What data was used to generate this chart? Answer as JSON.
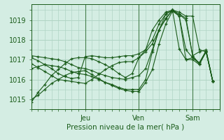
{
  "title": "",
  "xlabel": "Pression niveau de la mer( hPa )",
  "ylabel": "",
  "background_color": "#d4ede3",
  "grid_color": "#afd4c4",
  "line_color": "#1a5c1a",
  "ylim": [
    1014.5,
    1019.8
  ],
  "xlim": [
    0,
    84
  ],
  "xtick_positions": [
    24,
    48,
    72
  ],
  "xtick_labels": [
    "Jeu",
    "Ven",
    "Sam"
  ],
  "ytick_positions": [
    1015,
    1016,
    1017,
    1018,
    1019
  ],
  "ytick_labels": [
    "1015",
    "1016",
    "1017",
    "1018",
    "1019"
  ],
  "series": [
    [
      0,
      1014.85,
      3,
      1015.35,
      6,
      1015.75,
      9,
      1016.2,
      12,
      1016.5,
      15,
      1016.8,
      18,
      1017.05,
      21,
      1017.1,
      24,
      1017.1,
      27,
      1017.05,
      30,
      1016.9,
      33,
      1016.75,
      36,
      1016.55,
      39,
      1016.3,
      42,
      1016.1,
      45,
      1016.3,
      48,
      1017.1,
      51,
      1017.5,
      54,
      1018.0,
      57,
      1018.8,
      60,
      1019.3,
      63,
      1019.5,
      66,
      1019.4,
      69,
      1019.2,
      72,
      1019.2,
      75,
      1017.5,
      78,
      1017.4,
      81,
      1015.9
    ],
    [
      0,
      1017.1,
      3,
      1016.95,
      6,
      1016.75,
      9,
      1016.55,
      12,
      1016.3,
      15,
      1016.15,
      18,
      1016.05,
      21,
      1016.1,
      24,
      1017.15,
      27,
      1017.2,
      30,
      1017.15,
      33,
      1017.1,
      36,
      1017.1,
      39,
      1017.15,
      42,
      1017.2,
      45,
      1017.2,
      48,
      1017.3,
      51,
      1017.5,
      54,
      1018.5,
      57,
      1019.0,
      60,
      1019.4,
      63,
      1019.5,
      66,
      1019.3,
      69,
      1019.0,
      72,
      1017.2,
      75,
      1017.4,
      78,
      1017.5,
      81,
      1015.9
    ],
    [
      0,
      1016.8,
      3,
      1016.6,
      6,
      1016.4,
      9,
      1016.2,
      12,
      1016.0,
      15,
      1015.95,
      18,
      1015.9,
      21,
      1015.85,
      24,
      1015.8,
      27,
      1016.0,
      30,
      1016.25,
      33,
      1016.5,
      36,
      1016.7,
      39,
      1016.85,
      42,
      1016.9,
      45,
      1016.9,
      48,
      1017.1,
      51,
      1017.4,
      54,
      1017.8,
      57,
      1018.5,
      60,
      1019.1,
      63,
      1019.5,
      66,
      1019.3,
      69,
      1019.1,
      72,
      1017.2,
      75,
      1016.8,
      78,
      1017.45,
      81,
      1015.9
    ],
    [
      0,
      1016.55,
      3,
      1016.65,
      6,
      1016.75,
      9,
      1016.7,
      12,
      1016.65,
      15,
      1016.55,
      18,
      1016.4,
      21,
      1016.3,
      24,
      1016.25,
      27,
      1016.15,
      30,
      1016.0,
      33,
      1015.85,
      36,
      1015.75,
      39,
      1015.6,
      42,
      1015.5,
      45,
      1015.5,
      48,
      1015.5,
      51,
      1016.0,
      54,
      1017.4,
      57,
      1018.5,
      60,
      1019.3,
      63,
      1019.5,
      66,
      1019.2,
      69,
      1017.5,
      72,
      1017.1,
      75,
      1016.85,
      78,
      1017.45,
      81,
      1015.9
    ],
    [
      0,
      1015.0,
      3,
      1015.2,
      6,
      1015.5,
      9,
      1015.8,
      12,
      1016.0,
      15,
      1016.2,
      18,
      1016.35,
      21,
      1016.4,
      24,
      1016.45,
      27,
      1016.25,
      30,
      1016.05,
      33,
      1015.85,
      36,
      1015.7,
      39,
      1015.55,
      42,
      1015.45,
      45,
      1015.4,
      48,
      1015.4,
      51,
      1015.85,
      54,
      1016.5,
      57,
      1017.8,
      60,
      1018.8,
      63,
      1019.45,
      66,
      1019.2,
      69,
      1017.0,
      72,
      1017.1,
      75,
      1016.8,
      78,
      1017.4,
      81,
      1015.9
    ],
    [
      0,
      1017.2,
      3,
      1017.15,
      6,
      1017.1,
      9,
      1017.05,
      12,
      1017.0,
      15,
      1016.9,
      18,
      1016.75,
      21,
      1016.6,
      24,
      1016.55,
      27,
      1016.45,
      30,
      1016.3,
      33,
      1016.2,
      36,
      1016.1,
      39,
      1016.05,
      42,
      1016.0,
      45,
      1016.1,
      48,
      1016.2,
      51,
      1016.55,
      54,
      1017.5,
      57,
      1018.5,
      60,
      1019.05,
      63,
      1019.5,
      66,
      1017.55,
      69,
      1017.0,
      72,
      1017.0,
      75,
      1016.75,
      78,
      1017.4,
      81,
      1015.9
    ]
  ]
}
